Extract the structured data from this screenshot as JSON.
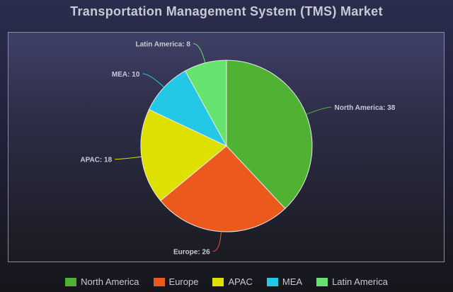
{
  "chart_data": {
    "type": "pie",
    "title": "Transportation Management System (TMS) Market",
    "categories": [
      "North America",
      "Europe",
      "APAC",
      "MEA",
      "Latin America"
    ],
    "values": [
      38,
      26,
      18,
      10,
      8
    ],
    "colors": [
      "#4fb233",
      "#eb5a1c",
      "#dde000",
      "#23c8e6",
      "#66e36e"
    ],
    "label_color": "#c9c9d6",
    "border_color": "#e8e8e8",
    "legend_position": "bottom",
    "start_angle_deg": 0,
    "direction": "clockwise"
  }
}
